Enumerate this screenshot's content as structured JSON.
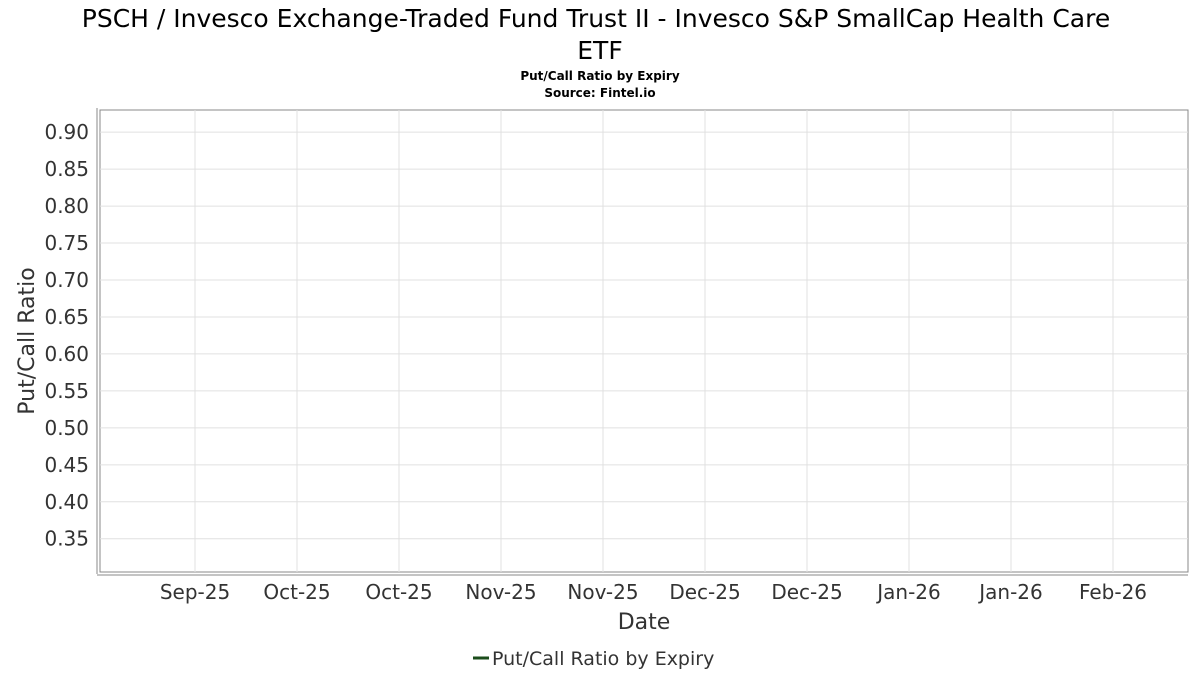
{
  "chart_data": {
    "type": "line",
    "title_lines": [
      "PSCH / Invesco Exchange-Traded Fund Trust II - Invesco S&P SmallCap Health Care",
      "ETF"
    ],
    "subtitle_lines": [
      "Put/Call Ratio by Expiry",
      "Source: Fintel.io"
    ],
    "xlabel": "Date",
    "ylabel": "Put/Call Ratio",
    "x_tick_labels": [
      "Sep-25",
      "Oct-25",
      "Oct-25",
      "Nov-25",
      "Nov-25",
      "Dec-25",
      "Dec-25",
      "Jan-26",
      "Jan-26",
      "Feb-26"
    ],
    "y_ticks": [
      0.35,
      0.4,
      0.45,
      0.5,
      0.55,
      0.6,
      0.65,
      0.7,
      0.75,
      0.8,
      0.85,
      0.9
    ],
    "ylim": [
      0.305,
      0.93
    ],
    "grid": true,
    "legend_position": "bottom-center",
    "series": [
      {
        "name": "Put/Call Ratio by Expiry",
        "color": "#1b4d1b",
        "x": [],
        "values": []
      }
    ]
  }
}
